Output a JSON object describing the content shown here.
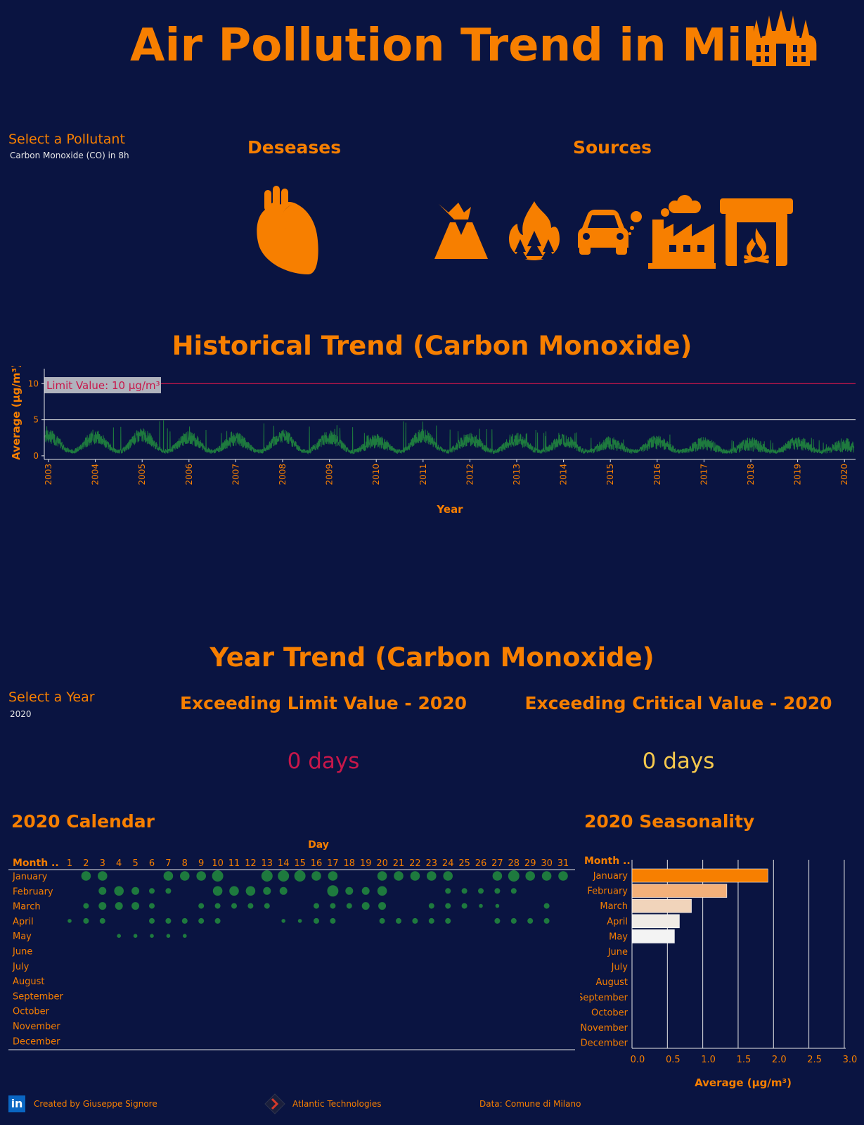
{
  "header": {
    "title": "Air Pollution Trend in Milan",
    "pollutant_label": "Select a Pollutant",
    "pollutant_value": "Carbon Monoxide (CO) in 8h",
    "diseases_title": "Deseases",
    "sources_title": "Sources",
    "icons": {
      "landmark": "milan-cathedral-icon",
      "disease": "heart-icon",
      "sources": [
        "volcano-icon",
        "forest-fire-icon",
        "car-exhaust-icon",
        "factory-icon",
        "fireplace-icon"
      ]
    }
  },
  "colors": {
    "background": "#0a1441",
    "accent": "#f77f00",
    "series": "#1e7a3e",
    "limit": "#c8174a",
    "critical": "#f6c94d"
  },
  "historical": {
    "title": "Historical Trend (Carbon Monoxide)",
    "limit_label": "Limit Value: 10 µg/m³"
  },
  "year_section": {
    "title": "Year Trend (Carbon Monoxide)",
    "year_label": "Select a Year",
    "year_value": "2020",
    "exceed_limit_title": "Exceeding Limit Value - 2020",
    "exceed_limit_value": "0 days",
    "exceed_critical_title": "Exceeding Critical Value - 2020",
    "exceed_critical_value": "0 days",
    "calendar_title": "2020 Calendar",
    "seasonality_title": "2020 Seasonality"
  },
  "chart_data": [
    {
      "type": "line",
      "name": "historical-trend",
      "xlabel": "Year",
      "ylabel": "Average (µg/m³)",
      "x_ticks": [
        "2003",
        "2004",
        "2005",
        "2006",
        "2007",
        "2008",
        "2009",
        "2010",
        "2011",
        "2012",
        "2013",
        "2014",
        "2015",
        "2016",
        "2017",
        "2018",
        "2019",
        "2020"
      ],
      "y_ticks": [
        0,
        5,
        10
      ],
      "ylim": [
        -0.5,
        11.5
      ],
      "limit_value": 10,
      "grid": "horizontal at 5",
      "yearly_peaks": [
        4.6,
        4.4,
        5.0,
        4.2,
        3.8,
        4.7,
        4.3,
        3.2,
        4.9,
        3.8,
        3.6,
        3.4,
        2.7,
        3.0,
        2.4,
        2.2,
        2.6,
        2.0
      ]
    },
    {
      "type": "scatter",
      "name": "2020-calendar",
      "xlabel": "Day",
      "ylabel": "Month ..",
      "months": [
        "January",
        "February",
        "March",
        "April",
        "May",
        "June",
        "July",
        "August",
        "September",
        "October",
        "November",
        "December"
      ],
      "days": [
        "1",
        "2",
        "3",
        "4",
        "5",
        "6",
        "7",
        "8",
        "9",
        "10",
        "11",
        "12",
        "13",
        "14",
        "15",
        "16",
        "17",
        "18",
        "19",
        "20",
        "21",
        "22",
        "23",
        "24",
        "25",
        "26",
        "27",
        "28",
        "29",
        "30",
        "31"
      ],
      "point_size_levels": {
        "January": {
          "2": 3,
          "3": 3,
          "7": 3,
          "8": 3,
          "9": 3,
          "10": 4,
          "13": 4,
          "14": 4,
          "15": 4,
          "16": 3,
          "17": 3,
          "20": 3,
          "21": 3,
          "22": 3,
          "23": 3,
          "24": 3,
          "27": 3,
          "28": 4,
          "29": 3,
          "30": 3,
          "31": 3
        },
        "February": {
          "3": 2,
          "4": 3,
          "5": 2,
          "6": 1,
          "7": 1,
          "10": 3,
          "11": 3,
          "12": 3,
          "13": 2,
          "14": 2,
          "17": 4,
          "18": 2,
          "19": 2,
          "20": 3,
          "24": 1,
          "25": 1,
          "26": 1,
          "27": 1,
          "28": 1
        },
        "March": {
          "2": 1,
          "3": 2,
          "4": 2,
          "5": 2,
          "6": 1,
          "9": 1,
          "10": 1,
          "11": 1,
          "12": 1,
          "13": 1,
          "16": 1,
          "17": 1,
          "18": 1,
          "19": 2,
          "20": 2,
          "23": 1,
          "24": 1,
          "25": 1,
          "26": 0.5,
          "27": 0.5,
          "30": 1
        },
        "April": {
          "1": 0.5,
          "2": 1,
          "3": 1,
          "6": 1,
          "7": 1,
          "8": 1,
          "9": 1,
          "10": 1,
          "14": 0.5,
          "15": 0.5,
          "16": 1,
          "17": 1,
          "20": 1,
          "21": 1,
          "22": 1,
          "23": 1,
          "24": 1,
          "27": 1,
          "28": 1,
          "29": 1,
          "30": 1
        },
        "May": {
          "4": 0.5,
          "5": 0.5,
          "6": 0.5,
          "7": 0.5,
          "8": 0.5
        }
      }
    },
    {
      "type": "bar",
      "name": "2020-seasonality",
      "orientation": "horizontal",
      "categories": [
        "January",
        "February",
        "March",
        "April",
        "May",
        "June",
        "July",
        "August",
        "September",
        "October",
        "November",
        "December"
      ],
      "values": [
        1.92,
        1.34,
        0.84,
        0.67,
        0.6,
        null,
        null,
        null,
        null,
        null,
        null,
        null
      ],
      "ylabel": "Month ..",
      "xlabel": "Average (µg/m³)",
      "x_ticks": [
        "0.0",
        "0.5",
        "1.0",
        "1.5",
        "2.0",
        "2.5",
        "3.0"
      ],
      "xlim": [
        0,
        3.0
      ]
    }
  ],
  "footer": {
    "created_by": "Created by Giuseppe Signore",
    "company": "Atlantic Technologies",
    "data_source": "Data: Comune di Milano",
    "linkedin_badge": "in",
    "linkedin_icon": "linkedin-icon",
    "company_icon": "atlantic-logo-icon"
  }
}
